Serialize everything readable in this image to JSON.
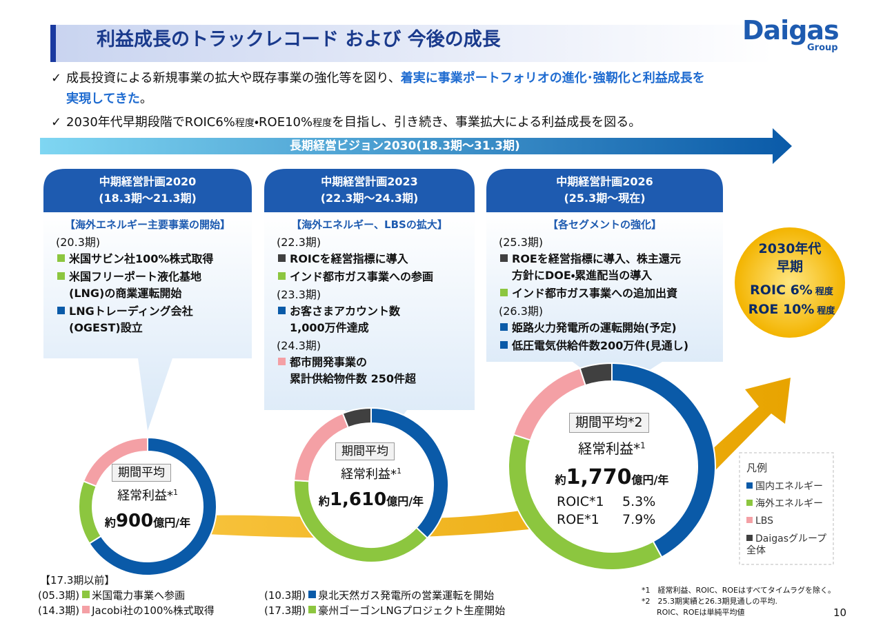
{
  "header": {
    "title": "利益成長のトラックレコード および 今後の成長",
    "logo": "Daigas",
    "logo_sub": "Group"
  },
  "bullets": [
    {
      "marker": "✓",
      "lines": [
        [
          {
            "text": "成長投資による新規事業の拡大や既存事業の強化等を図り、",
            "emphasis": false
          },
          {
            "text": "着実に事業ポートフォリオの進化･強靭化と利益成長を",
            "emphasis": true
          }
        ],
        [
          {
            "text": "実現してきた",
            "emphasis": true
          },
          {
            "text": "。",
            "emphasis": false
          }
        ]
      ]
    },
    {
      "marker": "✓",
      "lines": [
        [
          {
            "text": "2030年代早期段階でROIC6%",
            "emphasis": false
          },
          {
            "text": "程度",
            "emphasis": false,
            "small": true
          },
          {
            "text": "・ROE10%",
            "emphasis": false
          },
          {
            "text": "程度",
            "emphasis": false,
            "small": true
          },
          {
            "text": "を目指し、引き続き、事業拡大による利益成長を図る。",
            "emphasis": false
          }
        ]
      ]
    }
  ],
  "vision_banner": "長期経営ビジョン2030(18.3期～31.3期)",
  "plans": [
    {
      "title": "中期経営計画2020",
      "period": "(18.3期～21.3期)",
      "theme": "【海外エネルギー主要事業の開始】",
      "entries": [
        {
          "kind": "period",
          "lines": [
            "(20.3期)"
          ]
        },
        {
          "kind": "item",
          "color": "#8cc63f",
          "lines": [
            "米国サビン社100%株式取得"
          ]
        },
        {
          "kind": "item",
          "color": "#8cc63f",
          "lines": [
            "米国フリーポート液化基地",
            "(LNG)の商業運転開始"
          ]
        },
        {
          "kind": "item",
          "color": "#0a5aa8",
          "lines": [
            "LNGトレーディング会社",
            "(OGEST)設立"
          ]
        }
      ],
      "donut": {
        "box": "期間平均",
        "label": "経常利益*",
        "label_sup": "1",
        "prefix": "約",
        "amount": "900",
        "unit": "億円/年",
        "shares": [
          66,
          15,
          19
        ]
      }
    },
    {
      "title": "中期経営計画2023",
      "period": "(22.3期～24.3期)",
      "theme": "【海外エネルギー、LBSの拡大】",
      "entries": [
        {
          "kind": "period",
          "lines": [
            "(22.3期)"
          ]
        },
        {
          "kind": "item",
          "color": "#404040",
          "lines": [
            "ROICを経営指標に導入"
          ]
        },
        {
          "kind": "item",
          "color": "#8cc63f",
          "lines": [
            "インド都市ガス事業への参画"
          ]
        },
        {
          "kind": "period",
          "lines": [
            "(23.3期)"
          ]
        },
        {
          "kind": "item",
          "color": "#0a5aa8",
          "lines": [
            "お客さまアカウント数",
            "1,000万件達成"
          ]
        },
        {
          "kind": "period",
          "lines": [
            "(24.3期)"
          ]
        },
        {
          "kind": "item",
          "color": "#f4a0a5",
          "lines": [
            "都市開発事業の",
            "累計供給物件数 250件超"
          ]
        }
      ],
      "donut": {
        "box": "期間平均",
        "label": "経常利益*",
        "label_sup": "1",
        "prefix": "約",
        "amount": "1,610",
        "unit": "億円/年",
        "shares": [
          37,
          39,
          18,
          6
        ]
      }
    },
    {
      "title": "中期経営計画2026",
      "period": "(25.3期～現在)",
      "theme": "【各セグメントの強化】",
      "entries": [
        {
          "kind": "period",
          "lines": [
            "(25.3期)"
          ]
        },
        {
          "kind": "item",
          "color": "#404040",
          "lines": [
            "ROEを経営指標に導入、株主還元",
            "方針にDOE・累進配当の導入"
          ]
        },
        {
          "kind": "item",
          "color": "#8cc63f",
          "lines": [
            "インド都市ガス事業への追加出資"
          ]
        },
        {
          "kind": "period",
          "lines": [
            "(26.3期)"
          ]
        },
        {
          "kind": "item",
          "color": "#0a5aa8",
          "lines": [
            "姫路火力発電所の運転開始(予定)"
          ]
        },
        {
          "kind": "item",
          "color": "#0a5aa8",
          "lines": [
            "低圧電気供給件数200万件(見通し)"
          ]
        }
      ],
      "donut": {
        "box": "期間平均*2",
        "label": "経常利益*",
        "label_sup": "1",
        "prefix": "約",
        "amount": "1,770",
        "unit": "億円/年",
        "shares": [
          42,
          38,
          15,
          5
        ],
        "ratios": [
          {
            "name": "ROIC*1",
            "value": "5.3%"
          },
          {
            "name": "ROE*1",
            "value": "7.9%"
          }
        ]
      }
    }
  ],
  "target": {
    "lines": [
      "2030年代",
      "早期"
    ],
    "metrics": [
      {
        "text": "ROIC 6%",
        "qualifier": "程度"
      },
      {
        "text": "ROE 10%",
        "qualifier": "程度"
      }
    ]
  },
  "legend": {
    "title": "凡例",
    "items": [
      {
        "label": "国内エネルギー",
        "color": "#0a5aa8"
      },
      {
        "label": "海外エネルギー",
        "color": "#8cc63f"
      },
      {
        "label": "LBS",
        "color": "#f4a0a5"
      },
      {
        "label": "Daigasグループ全体",
        "color": "#404040"
      }
    ]
  },
  "history": {
    "title": "【17.3期以前】",
    "rows": [
      [
        {
          "period": "(05.3期)",
          "color": "#8cc63f",
          "text": "米国電力事業へ参画"
        },
        {
          "period": "(10.3期)",
          "color": "#0a5aa8",
          "text": "泉北天然ガス発電所の営業運転を開始"
        }
      ],
      [
        {
          "period": "(14.3期)",
          "color": "#f4a0a5",
          "text": "Jacobi社の100%株式取得"
        },
        {
          "period": "(17.3期)",
          "color": "#8cc63f",
          "text": "豪州ゴーゴンLNGプロジェクト生産開始"
        }
      ]
    ]
  },
  "footnotes": [
    "*1　経常利益、ROIC、ROEはすべてタイムラグを除く。",
    "*2　25.3期実績と26.3期見通しの平均.",
    "ROIC、ROEは単純平均値"
  ],
  "page_number": "10"
}
